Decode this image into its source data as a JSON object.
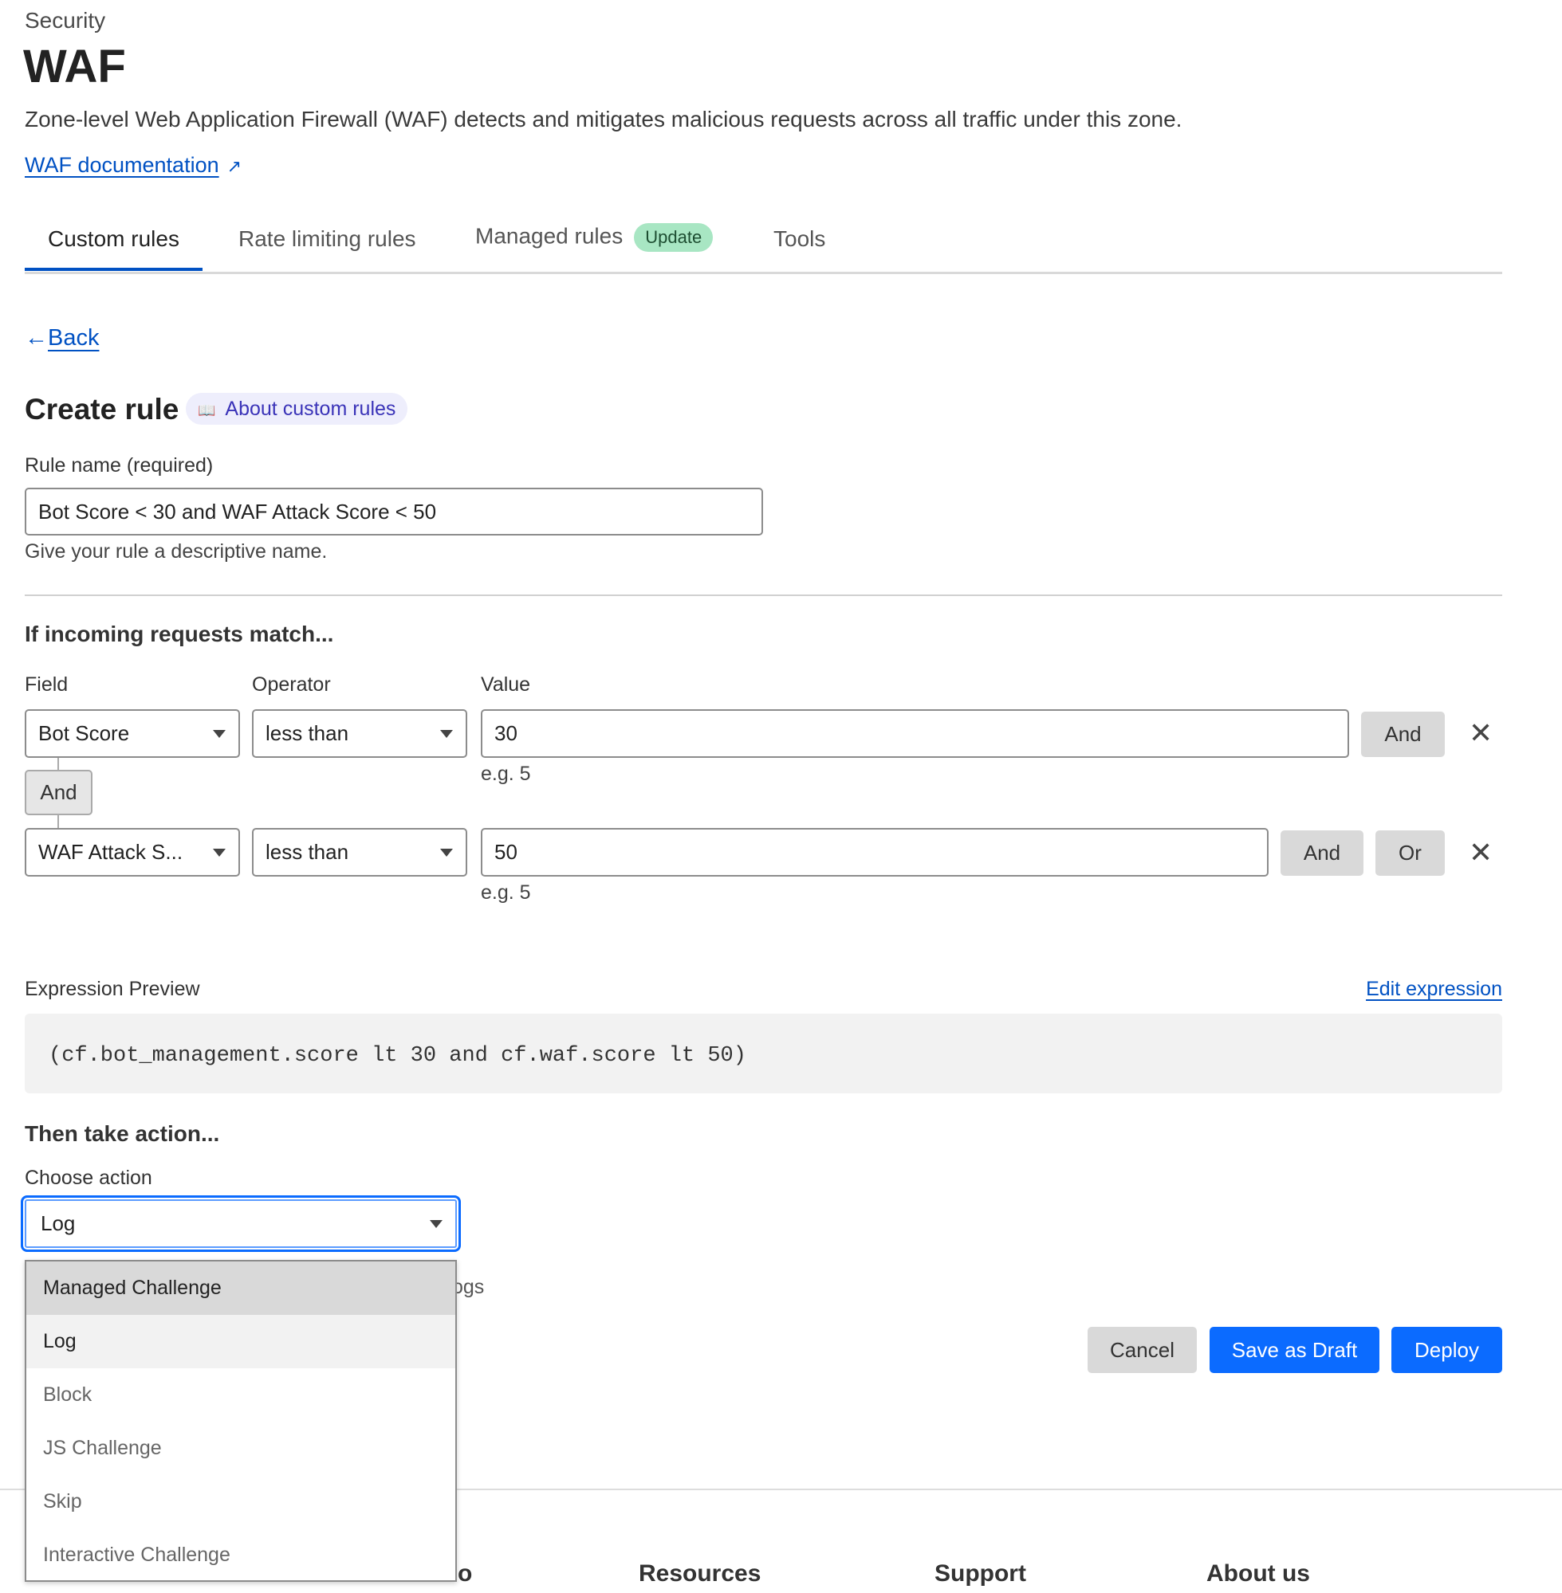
{
  "header": {
    "breadcrumb": "Security",
    "title": "WAF",
    "description": "Zone-level Web Application Firewall (WAF) detects and mitigates malicious requests across all traffic under this zone.",
    "doc_link": "WAF documentation"
  },
  "tabs": [
    {
      "label": "Custom rules",
      "active": true
    },
    {
      "label": "Rate limiting rules"
    },
    {
      "label": "Managed rules",
      "badge": "Update"
    },
    {
      "label": "Tools"
    }
  ],
  "back": "Back",
  "create": {
    "title": "Create rule",
    "about": "About custom rules"
  },
  "rule_name": {
    "label": "Rule name (required)",
    "value": "Bot Score < 30 and WAF Attack Score < 50",
    "help": "Give your rule a descriptive name."
  },
  "match": {
    "heading": "If incoming requests match...",
    "field_label": "Field",
    "operator_label": "Operator",
    "value_label": "Value",
    "rows": [
      {
        "field": "Bot Score",
        "operator": "less than",
        "value": "30",
        "hint": "e.g. 5",
        "and": "And"
      },
      {
        "field": "WAF Attack S...",
        "operator": "less than",
        "value": "50",
        "hint": "e.g. 5",
        "and": "And",
        "or": "Or"
      }
    ],
    "connector": "And"
  },
  "expression": {
    "label": "Expression Preview",
    "edit": "Edit expression",
    "code": "(cf.bot_management.score lt 30 and cf.waf.score lt 50)"
  },
  "action": {
    "heading": "Then take action...",
    "label": "Choose action",
    "selected": "Log",
    "options": [
      "Managed Challenge",
      "Log",
      "Block",
      "JS Challenge",
      "Skip",
      "Interactive Challenge"
    ],
    "hidden_text_fragment": "ogs"
  },
  "buttons": {
    "cancel": "Cancel",
    "draft": "Save as Draft",
    "deploy": "Deploy"
  },
  "footer": {
    "partial": "o",
    "items": [
      "Resources",
      "Support",
      "About us"
    ]
  },
  "colors": {
    "accent": "#0051c3",
    "primary_button": "#0b6bff",
    "badge": "#a8e6c3"
  }
}
